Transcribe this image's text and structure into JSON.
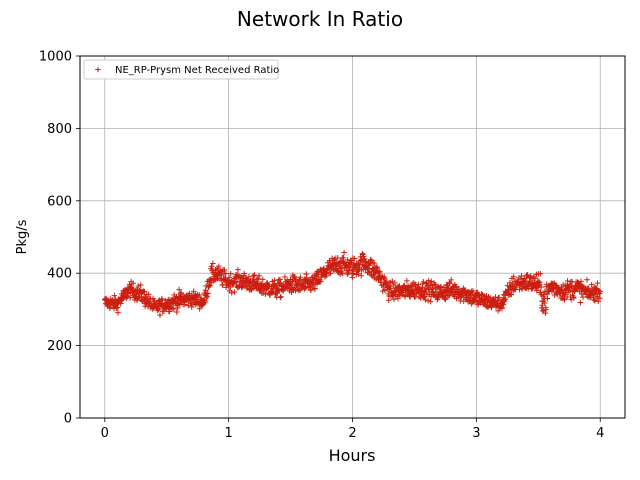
{
  "chart_data": {
    "type": "scatter",
    "title": "Network In Ratio",
    "xlabel": "Hours",
    "ylabel": "Pkg/s",
    "xlim": [
      -0.2,
      4.2
    ],
    "ylim": [
      0,
      1000
    ],
    "xticks": [
      0,
      1,
      2,
      3,
      4
    ],
    "yticks": [
      0,
      200,
      400,
      600,
      800,
      1000
    ],
    "grid": true,
    "legend_position": "top-left",
    "marker": "+",
    "series": [
      {
        "name": "NE_RP-Prysm Net Received Ratio",
        "color": "#cc1f10",
        "x": [
          0.0,
          0.1,
          0.2,
          0.3,
          0.4,
          0.5,
          0.6,
          0.7,
          0.8,
          0.85,
          0.9,
          1.0,
          1.1,
          1.2,
          1.3,
          1.4,
          1.5,
          1.6,
          1.7,
          1.8,
          1.9,
          2.0,
          2.1,
          2.2,
          2.3,
          2.4,
          2.5,
          2.6,
          2.7,
          2.8,
          2.9,
          3.0,
          3.1,
          3.2,
          3.3,
          3.4,
          3.5,
          3.55,
          3.6,
          3.7,
          3.8,
          3.9,
          4.0
        ],
        "y": [
          320,
          315,
          355,
          340,
          305,
          315,
          325,
          330,
          320,
          390,
          400,
          375,
          380,
          370,
          360,
          355,
          370,
          365,
          375,
          410,
          425,
          415,
          430,
          400,
          350,
          350,
          355,
          355,
          345,
          355,
          345,
          330,
          320,
          315,
          370,
          375,
          370,
          320,
          365,
          350,
          360,
          345,
          350
        ],
        "spread": [
          20,
          25,
          25,
          30,
          25,
          25,
          30,
          25,
          25,
          35,
          30,
          30,
          30,
          30,
          30,
          30,
          30,
          30,
          30,
          35,
          35,
          35,
          35,
          35,
          30,
          30,
          30,
          30,
          30,
          30,
          30,
          30,
          25,
          25,
          30,
          30,
          35,
          60,
          30,
          30,
          35,
          30,
          25
        ]
      }
    ]
  }
}
